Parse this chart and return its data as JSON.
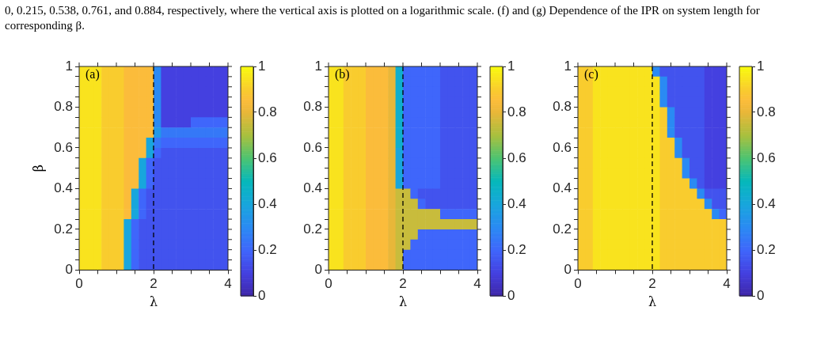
{
  "chart_data": [
    {
      "type": "heatmap",
      "title": "(a)",
      "xlabel": "λ",
      "ylabel": "β",
      "annotations": [
        "0, 0.215, 0.538, 0.761, and 0.884, respectively, where the vertical axis is plotted on a logarithmic scale. (f) and (g) Dependence of the IPR on system length for corresponding β."
      ],
      "xlim": [
        0,
        4
      ],
      "xticks": [
        0,
        {
          "value": 0.5,
          "label": null
        },
        {
          "value": 1,
          "label": null
        },
        {
          "value": 1.5,
          "label": null
        },
        2,
        {
          "value": 2.5,
          "label": null
        },
        {
          "value": 3,
          "label": null
        },
        {
          "value": 3.5,
          "label": null
        },
        4
      ],
      "ylim": [
        0,
        1
      ],
      "yticks": [
        0,
        {
          "value": 0.05,
          "label": null
        },
        {
          "value": 0.1,
          "label": null
        },
        {
          "value": 0.15,
          "label": null
        },
        0.2,
        {
          "value": 0.25,
          "label": null
        },
        {
          "value": 0.3,
          "label": null
        },
        {
          "value": 0.35,
          "label": null
        },
        0.4,
        {
          "value": 0.45,
          "label": null
        },
        {
          "value": 0.5,
          "label": null
        },
        {
          "value": 0.55,
          "label": null
        },
        0.6,
        {
          "value": 0.65,
          "label": null
        },
        {
          "value": 0.7,
          "label": null
        },
        {
          "value": 0.75,
          "label": null
        },
        0.8,
        {
          "value": 0.85,
          "label": null
        },
        {
          "value": 0.9,
          "label": null
        },
        {
          "value": 0.95,
          "label": null
        },
        1
      ],
      "clim": [
        0,
        1
      ],
      "cticks": [
        0,
        0.2,
        0.4,
        0.6,
        0.8,
        1
      ],
      "ref_lines": [
        {
          "axis": "x",
          "value": 2,
          "color": "#000000",
          "line_style": "dashed"
        }
      ],
      "cells": [
        [
          0.95,
          0.95,
          0.95,
          0.9,
          0.9,
          0.9,
          0.85,
          0.85,
          0.85,
          0.85,
          0.3,
          0.1,
          0.1,
          0.1,
          0.1,
          0.1,
          0.1,
          0.1,
          0.1,
          0.1
        ],
        [
          0.95,
          0.95,
          0.95,
          0.9,
          0.9,
          0.9,
          0.85,
          0.85,
          0.85,
          0.85,
          0.3,
          0.1,
          0.1,
          0.1,
          0.1,
          0.1,
          0.1,
          0.1,
          0.1,
          0.1
        ],
        [
          0.95,
          0.95,
          0.95,
          0.9,
          0.9,
          0.9,
          0.85,
          0.85,
          0.85,
          0.85,
          0.3,
          0.1,
          0.1,
          0.1,
          0.1,
          0.1,
          0.1,
          0.1,
          0.1,
          0.1
        ],
        [
          0.95,
          0.95,
          0.95,
          0.9,
          0.9,
          0.9,
          0.85,
          0.85,
          0.85,
          0.85,
          0.3,
          0.1,
          0.1,
          0.1,
          0.1,
          0.1,
          0.1,
          0.1,
          0.1,
          0.1
        ],
        [
          0.95,
          0.95,
          0.95,
          0.9,
          0.9,
          0.9,
          0.85,
          0.85,
          0.85,
          0.85,
          0.3,
          0.1,
          0.1,
          0.1,
          0.1,
          0.1,
          0.1,
          0.1,
          0.1,
          0.1
        ],
        [
          0.95,
          0.95,
          0.95,
          0.9,
          0.9,
          0.9,
          0.85,
          0.85,
          0.85,
          0.85,
          0.3,
          0.1,
          0.1,
          0.1,
          0.1,
          0.2,
          0.2,
          0.2,
          0.2,
          0.2
        ],
        [
          0.95,
          0.95,
          0.95,
          0.9,
          0.9,
          0.9,
          0.85,
          0.85,
          0.85,
          0.85,
          0.35,
          0.25,
          0.25,
          0.25,
          0.25,
          0.25,
          0.25,
          0.25,
          0.25,
          0.25
        ],
        [
          0.95,
          0.95,
          0.95,
          0.9,
          0.9,
          0.9,
          0.85,
          0.85,
          0.85,
          0.4,
          0.25,
          0.2,
          0.2,
          0.2,
          0.2,
          0.2,
          0.2,
          0.2,
          0.2,
          0.2
        ],
        [
          0.95,
          0.95,
          0.95,
          0.9,
          0.9,
          0.9,
          0.85,
          0.85,
          0.85,
          0.4,
          0.2,
          0.15,
          0.15,
          0.15,
          0.15,
          0.15,
          0.15,
          0.15,
          0.15,
          0.15
        ],
        [
          0.95,
          0.95,
          0.95,
          0.9,
          0.9,
          0.9,
          0.85,
          0.85,
          0.4,
          0.2,
          0.15,
          0.15,
          0.15,
          0.15,
          0.15,
          0.15,
          0.15,
          0.15,
          0.15,
          0.15
        ],
        [
          0.95,
          0.95,
          0.95,
          0.9,
          0.9,
          0.9,
          0.85,
          0.85,
          0.4,
          0.2,
          0.15,
          0.15,
          0.15,
          0.15,
          0.15,
          0.15,
          0.15,
          0.15,
          0.15,
          0.15
        ],
        [
          0.95,
          0.95,
          0.95,
          0.9,
          0.9,
          0.9,
          0.85,
          0.85,
          0.4,
          0.2,
          0.15,
          0.15,
          0.15,
          0.15,
          0.15,
          0.15,
          0.15,
          0.15,
          0.15,
          0.15
        ],
        [
          0.95,
          0.95,
          0.95,
          0.9,
          0.9,
          0.9,
          0.85,
          0.4,
          0.2,
          0.15,
          0.15,
          0.15,
          0.15,
          0.15,
          0.15,
          0.15,
          0.15,
          0.15,
          0.15,
          0.15
        ],
        [
          0.95,
          0.95,
          0.95,
          0.9,
          0.9,
          0.9,
          0.85,
          0.4,
          0.2,
          0.15,
          0.15,
          0.15,
          0.15,
          0.15,
          0.15,
          0.15,
          0.15,
          0.15,
          0.15,
          0.15
        ],
        [
          0.95,
          0.95,
          0.95,
          0.9,
          0.9,
          0.9,
          0.85,
          0.4,
          0.2,
          0.15,
          0.15,
          0.15,
          0.15,
          0.15,
          0.15,
          0.15,
          0.15,
          0.15,
          0.15,
          0.15
        ],
        [
          0.95,
          0.95,
          0.95,
          0.9,
          0.9,
          0.9,
          0.4,
          0.2,
          0.15,
          0.15,
          0.15,
          0.15,
          0.15,
          0.15,
          0.15,
          0.15,
          0.15,
          0.15,
          0.15,
          0.15
        ],
        [
          0.95,
          0.95,
          0.95,
          0.9,
          0.9,
          0.9,
          0.4,
          0.2,
          0.15,
          0.15,
          0.15,
          0.15,
          0.15,
          0.15,
          0.15,
          0.15,
          0.15,
          0.15,
          0.15,
          0.15
        ],
        [
          0.95,
          0.95,
          0.95,
          0.9,
          0.9,
          0.9,
          0.4,
          0.2,
          0.15,
          0.15,
          0.15,
          0.15,
          0.15,
          0.15,
          0.15,
          0.15,
          0.15,
          0.15,
          0.15,
          0.15
        ],
        [
          0.95,
          0.95,
          0.95,
          0.9,
          0.9,
          0.9,
          0.4,
          0.2,
          0.15,
          0.15,
          0.15,
          0.15,
          0.15,
          0.15,
          0.15,
          0.15,
          0.15,
          0.15,
          0.15,
          0.15
        ],
        [
          0.95,
          0.95,
          0.95,
          0.9,
          0.9,
          0.9,
          0.4,
          0.2,
          0.15,
          0.15,
          0.15,
          0.15,
          0.15,
          0.15,
          0.15,
          0.15,
          0.15,
          0.15,
          0.15,
          0.15
        ]
      ]
    },
    {
      "type": "heatmap",
      "title": "(b)",
      "xlabel": "λ",
      "xlim": [
        0,
        4
      ],
      "xticks": [
        0,
        {
          "value": 0.5,
          "label": null
        },
        {
          "value": 1,
          "label": null
        },
        {
          "value": 1.5,
          "label": null
        },
        2,
        {
          "value": 2.5,
          "label": null
        },
        {
          "value": 3,
          "label": null
        },
        {
          "value": 3.5,
          "label": null
        },
        4
      ],
      "ylim": [
        0,
        1
      ],
      "yticks": [
        0,
        {
          "value": 0.05,
          "label": null
        },
        {
          "value": 0.1,
          "label": null
        },
        {
          "value": 0.15,
          "label": null
        },
        0.2,
        {
          "value": 0.25,
          "label": null
        },
        {
          "value": 0.3,
          "label": null
        },
        {
          "value": 0.35,
          "label": null
        },
        0.4,
        {
          "value": 0.45,
          "label": null
        },
        {
          "value": 0.5,
          "label": null
        },
        {
          "value": 0.55,
          "label": null
        },
        0.6,
        {
          "value": 0.65,
          "label": null
        },
        {
          "value": 0.7,
          "label": null
        },
        {
          "value": 0.75,
          "label": null
        },
        0.8,
        {
          "value": 0.85,
          "label": null
        },
        {
          "value": 0.9,
          "label": null
        },
        {
          "value": 0.95,
          "label": null
        },
        1
      ],
      "clim": [
        0,
        1
      ],
      "cticks": [
        0,
        0.2,
        0.4,
        0.6,
        0.8,
        1
      ],
      "ref_lines": [
        {
          "axis": "x",
          "value": 2,
          "color": "#000000",
          "line_style": "dashed"
        }
      ],
      "cells": [
        [
          0.95,
          0.95,
          0.9,
          0.9,
          0.9,
          0.85,
          0.85,
          0.85,
          0.8,
          0.45,
          0.2,
          0.2,
          0.2,
          0.2,
          0.2,
          0.15,
          0.15,
          0.15,
          0.15,
          0.15
        ],
        [
          0.95,
          0.95,
          0.9,
          0.9,
          0.9,
          0.85,
          0.85,
          0.85,
          0.8,
          0.45,
          0.2,
          0.2,
          0.2,
          0.2,
          0.2,
          0.15,
          0.15,
          0.15,
          0.15,
          0.15
        ],
        [
          0.95,
          0.95,
          0.9,
          0.9,
          0.9,
          0.85,
          0.85,
          0.85,
          0.8,
          0.45,
          0.2,
          0.2,
          0.2,
          0.2,
          0.2,
          0.15,
          0.15,
          0.15,
          0.15,
          0.15
        ],
        [
          0.95,
          0.95,
          0.9,
          0.9,
          0.9,
          0.85,
          0.85,
          0.85,
          0.8,
          0.45,
          0.2,
          0.2,
          0.2,
          0.2,
          0.2,
          0.15,
          0.15,
          0.15,
          0.15,
          0.15
        ],
        [
          0.95,
          0.95,
          0.9,
          0.9,
          0.9,
          0.85,
          0.85,
          0.85,
          0.8,
          0.45,
          0.2,
          0.2,
          0.2,
          0.2,
          0.2,
          0.15,
          0.15,
          0.15,
          0.15,
          0.15
        ],
        [
          0.95,
          0.95,
          0.9,
          0.9,
          0.9,
          0.85,
          0.85,
          0.85,
          0.8,
          0.45,
          0.2,
          0.2,
          0.2,
          0.2,
          0.2,
          0.15,
          0.15,
          0.15,
          0.15,
          0.15
        ],
        [
          0.95,
          0.95,
          0.9,
          0.9,
          0.9,
          0.85,
          0.85,
          0.85,
          0.8,
          0.45,
          0.2,
          0.2,
          0.2,
          0.2,
          0.2,
          0.15,
          0.15,
          0.15,
          0.15,
          0.15
        ],
        [
          0.95,
          0.95,
          0.9,
          0.9,
          0.9,
          0.85,
          0.85,
          0.85,
          0.8,
          0.45,
          0.2,
          0.2,
          0.2,
          0.2,
          0.2,
          0.15,
          0.15,
          0.15,
          0.15,
          0.15
        ],
        [
          0.95,
          0.95,
          0.9,
          0.9,
          0.9,
          0.85,
          0.85,
          0.85,
          0.8,
          0.4,
          0.2,
          0.2,
          0.2,
          0.2,
          0.2,
          0.15,
          0.15,
          0.15,
          0.15,
          0.15
        ],
        [
          0.95,
          0.95,
          0.9,
          0.9,
          0.9,
          0.85,
          0.85,
          0.85,
          0.8,
          0.4,
          0.2,
          0.2,
          0.2,
          0.2,
          0.2,
          0.15,
          0.15,
          0.15,
          0.15,
          0.15
        ],
        [
          0.95,
          0.95,
          0.9,
          0.9,
          0.9,
          0.85,
          0.85,
          0.85,
          0.8,
          0.4,
          0.2,
          0.2,
          0.2,
          0.2,
          0.2,
          0.15,
          0.15,
          0.15,
          0.15,
          0.15
        ],
        [
          0.95,
          0.95,
          0.9,
          0.9,
          0.9,
          0.85,
          0.85,
          0.85,
          0.8,
          0.4,
          0.2,
          0.2,
          0.2,
          0.2,
          0.2,
          0.15,
          0.15,
          0.15,
          0.15,
          0.15
        ],
        [
          0.95,
          0.95,
          0.9,
          0.9,
          0.9,
          0.85,
          0.85,
          0.85,
          0.8,
          0.75,
          0.75,
          0.2,
          0.15,
          0.15,
          0.15,
          0.15,
          0.15,
          0.15,
          0.15,
          0.15
        ],
        [
          0.95,
          0.95,
          0.9,
          0.9,
          0.9,
          0.85,
          0.85,
          0.85,
          0.8,
          0.75,
          0.75,
          0.75,
          0.2,
          0.15,
          0.15,
          0.15,
          0.15,
          0.15,
          0.15,
          0.15
        ],
        [
          0.95,
          0.95,
          0.9,
          0.9,
          0.9,
          0.85,
          0.85,
          0.85,
          0.8,
          0.75,
          0.75,
          0.75,
          0.75,
          0.75,
          0.75,
          0.2,
          0.2,
          0.2,
          0.2,
          0.2
        ],
        [
          0.95,
          0.95,
          0.9,
          0.9,
          0.9,
          0.85,
          0.85,
          0.85,
          0.8,
          0.75,
          0.75,
          0.75,
          0.75,
          0.75,
          0.75,
          0.75,
          0.75,
          0.75,
          0.75,
          0.75
        ],
        [
          0.95,
          0.95,
          0.9,
          0.9,
          0.9,
          0.85,
          0.85,
          0.85,
          0.8,
          0.75,
          0.75,
          0.75,
          0.2,
          0.2,
          0.2,
          0.2,
          0.2,
          0.2,
          0.2,
          0.2
        ],
        [
          0.95,
          0.95,
          0.9,
          0.9,
          0.9,
          0.85,
          0.85,
          0.85,
          0.8,
          0.75,
          0.75,
          0.2,
          0.2,
          0.2,
          0.2,
          0.2,
          0.2,
          0.2,
          0.2,
          0.2
        ],
        [
          0.95,
          0.95,
          0.9,
          0.9,
          0.9,
          0.85,
          0.85,
          0.85,
          0.8,
          0.75,
          0.2,
          0.2,
          0.2,
          0.2,
          0.2,
          0.2,
          0.2,
          0.2,
          0.2,
          0.2
        ],
        [
          0.95,
          0.95,
          0.9,
          0.9,
          0.9,
          0.85,
          0.85,
          0.85,
          0.8,
          0.75,
          0.2,
          0.2,
          0.2,
          0.2,
          0.2,
          0.2,
          0.2,
          0.2,
          0.2,
          0.2
        ]
      ]
    },
    {
      "type": "heatmap",
      "title": "(c)",
      "xlabel": "λ",
      "xlim": [
        0,
        4
      ],
      "xticks": [
        0,
        {
          "value": 0.5,
          "label": null
        },
        {
          "value": 1,
          "label": null
        },
        {
          "value": 1.5,
          "label": null
        },
        2,
        {
          "value": 2.5,
          "label": null
        },
        {
          "value": 3,
          "label": null
        },
        {
          "value": 3.5,
          "label": null
        },
        4
      ],
      "ylim": [
        0,
        1
      ],
      "yticks": [
        0,
        {
          "value": 0.05,
          "label": null
        },
        {
          "value": 0.1,
          "label": null
        },
        {
          "value": 0.15,
          "label": null
        },
        0.2,
        {
          "value": 0.25,
          "label": null
        },
        {
          "value": 0.3,
          "label": null
        },
        {
          "value": 0.35,
          "label": null
        },
        0.4,
        {
          "value": 0.45,
          "label": null
        },
        {
          "value": 0.5,
          "label": null
        },
        {
          "value": 0.55,
          "label": null
        },
        0.6,
        {
          "value": 0.65,
          "label": null
        },
        {
          "value": 0.7,
          "label": null
        },
        {
          "value": 0.75,
          "label": null
        },
        0.8,
        {
          "value": 0.85,
          "label": null
        },
        {
          "value": 0.9,
          "label": null
        },
        {
          "value": 0.95,
          "label": null
        },
        1
      ],
      "clim": [
        0,
        1
      ],
      "cticks": [
        0,
        0.2,
        0.4,
        0.6,
        0.8,
        1
      ],
      "ref_lines": [
        {
          "axis": "x",
          "value": 2,
          "color": "#000000",
          "line_style": "dashed"
        }
      ],
      "cells": [
        [
          0.9,
          0.9,
          0.95,
          0.95,
          0.95,
          0.95,
          0.95,
          0.95,
          0.95,
          0.95,
          0.3,
          0.15,
          0.15,
          0.15,
          0.15,
          0.15,
          0.15,
          0.1,
          0.1,
          0.1
        ],
        [
          0.9,
          0.9,
          0.95,
          0.95,
          0.95,
          0.95,
          0.95,
          0.95,
          0.95,
          0.95,
          0.95,
          0.3,
          0.15,
          0.15,
          0.15,
          0.15,
          0.15,
          0.1,
          0.1,
          0.1
        ],
        [
          0.9,
          0.9,
          0.95,
          0.95,
          0.95,
          0.95,
          0.95,
          0.95,
          0.95,
          0.95,
          0.95,
          0.3,
          0.15,
          0.15,
          0.15,
          0.15,
          0.15,
          0.1,
          0.1,
          0.1
        ],
        [
          0.9,
          0.9,
          0.95,
          0.95,
          0.95,
          0.95,
          0.95,
          0.95,
          0.95,
          0.95,
          0.95,
          0.3,
          0.15,
          0.15,
          0.15,
          0.15,
          0.15,
          0.1,
          0.1,
          0.1
        ],
        [
          0.9,
          0.9,
          0.95,
          0.95,
          0.95,
          0.95,
          0.95,
          0.95,
          0.95,
          0.95,
          0.95,
          0.9,
          0.3,
          0.15,
          0.15,
          0.15,
          0.15,
          0.1,
          0.1,
          0.1
        ],
        [
          0.9,
          0.9,
          0.95,
          0.95,
          0.95,
          0.95,
          0.95,
          0.95,
          0.95,
          0.95,
          0.95,
          0.9,
          0.3,
          0.15,
          0.15,
          0.15,
          0.15,
          0.1,
          0.1,
          0.1
        ],
        [
          0.9,
          0.9,
          0.95,
          0.95,
          0.95,
          0.95,
          0.95,
          0.95,
          0.95,
          0.95,
          0.95,
          0.9,
          0.3,
          0.15,
          0.15,
          0.15,
          0.15,
          0.1,
          0.1,
          0.1
        ],
        [
          0.9,
          0.9,
          0.95,
          0.95,
          0.95,
          0.95,
          0.95,
          0.95,
          0.95,
          0.95,
          0.95,
          0.9,
          0.9,
          0.3,
          0.15,
          0.15,
          0.15,
          0.1,
          0.1,
          0.1
        ],
        [
          0.9,
          0.9,
          0.95,
          0.95,
          0.95,
          0.95,
          0.95,
          0.95,
          0.95,
          0.95,
          0.95,
          0.9,
          0.9,
          0.3,
          0.15,
          0.15,
          0.15,
          0.1,
          0.1,
          0.1
        ],
        [
          0.9,
          0.9,
          0.95,
          0.95,
          0.95,
          0.95,
          0.95,
          0.95,
          0.95,
          0.95,
          0.95,
          0.9,
          0.9,
          0.9,
          0.3,
          0.15,
          0.15,
          0.1,
          0.1,
          0.1
        ],
        [
          0.9,
          0.9,
          0.95,
          0.95,
          0.95,
          0.95,
          0.95,
          0.95,
          0.95,
          0.95,
          0.95,
          0.9,
          0.9,
          0.9,
          0.3,
          0.15,
          0.15,
          0.1,
          0.1,
          0.1
        ],
        [
          0.9,
          0.9,
          0.95,
          0.95,
          0.95,
          0.95,
          0.95,
          0.95,
          0.95,
          0.95,
          0.95,
          0.9,
          0.9,
          0.9,
          0.9,
          0.3,
          0.15,
          0.1,
          0.1,
          0.1
        ],
        [
          0.9,
          0.9,
          0.95,
          0.95,
          0.95,
          0.95,
          0.95,
          0.95,
          0.95,
          0.95,
          0.95,
          0.9,
          0.9,
          0.9,
          0.9,
          0.9,
          0.3,
          0.15,
          0.15,
          0.15
        ],
        [
          0.9,
          0.9,
          0.95,
          0.95,
          0.95,
          0.95,
          0.95,
          0.95,
          0.95,
          0.95,
          0.95,
          0.9,
          0.9,
          0.9,
          0.9,
          0.9,
          0.9,
          0.3,
          0.15,
          0.15
        ],
        [
          0.9,
          0.9,
          0.95,
          0.95,
          0.95,
          0.95,
          0.95,
          0.95,
          0.95,
          0.95,
          0.95,
          0.9,
          0.9,
          0.9,
          0.9,
          0.9,
          0.9,
          0.9,
          0.3,
          0.2
        ],
        [
          0.9,
          0.9,
          0.95,
          0.95,
          0.95,
          0.95,
          0.95,
          0.95,
          0.95,
          0.95,
          0.95,
          0.9,
          0.9,
          0.9,
          0.9,
          0.9,
          0.9,
          0.9,
          0.9,
          0.9
        ],
        [
          0.9,
          0.9,
          0.95,
          0.95,
          0.95,
          0.95,
          0.95,
          0.95,
          0.95,
          0.95,
          0.95,
          0.9,
          0.9,
          0.9,
          0.9,
          0.9,
          0.9,
          0.9,
          0.9,
          0.9
        ],
        [
          0.9,
          0.9,
          0.95,
          0.95,
          0.95,
          0.95,
          0.95,
          0.95,
          0.95,
          0.95,
          0.95,
          0.9,
          0.9,
          0.9,
          0.9,
          0.9,
          0.9,
          0.9,
          0.9,
          0.9
        ],
        [
          0.9,
          0.9,
          0.95,
          0.95,
          0.95,
          0.95,
          0.95,
          0.95,
          0.95,
          0.95,
          0.95,
          0.9,
          0.9,
          0.9,
          0.9,
          0.9,
          0.9,
          0.9,
          0.9,
          0.9
        ],
        [
          0.9,
          0.9,
          0.95,
          0.95,
          0.95,
          0.95,
          0.95,
          0.95,
          0.95,
          0.95,
          0.95,
          0.9,
          0.9,
          0.9,
          0.9,
          0.9,
          0.9,
          0.9,
          0.9,
          0.9
        ]
      ]
    }
  ]
}
